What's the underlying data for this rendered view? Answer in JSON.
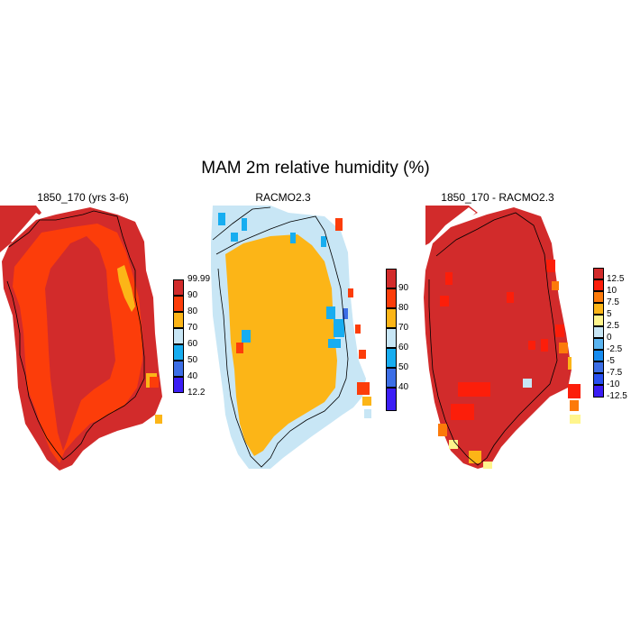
{
  "title": "MAM 2m relative humidity (%)",
  "panels": [
    {
      "title": "1850_170 (yrs 3-6)",
      "colorbar": {
        "colors": [
          "#d22b2b",
          "#fc3d0a",
          "#fcb517",
          "#c8e6f5",
          "#17adf0",
          "#3c6ee6",
          "#3c1ef5"
        ],
        "labels": [
          "99.99",
          "90",
          "80",
          "70",
          "60",
          "50",
          "40",
          "12.2"
        ]
      }
    },
    {
      "title": "RACMO2.3",
      "colorbar": {
        "colors": [
          "#d22b2b",
          "#fc3d0a",
          "#fcb517",
          "#c8e6f5",
          "#17adf0",
          "#3c6ee6",
          "#3c1ef5"
        ],
        "labels": [
          "90",
          "80",
          "70",
          "60",
          "50",
          "40"
        ]
      }
    },
    {
      "title": "1850_170 - RACMO2.3",
      "colorbar": {
        "colors": [
          "#d22b2b",
          "#fc1e0a",
          "#fc7a0a",
          "#fcb517",
          "#fff58c",
          "#c8e6f5",
          "#5ab4f0",
          "#178cf0",
          "#3c6ee6",
          "#2850f0",
          "#3c1ef5"
        ],
        "labels": [
          "12.5",
          "10",
          "7.5",
          "5",
          "2.5",
          "0",
          "-2.5",
          "-5",
          "-7.5",
          "-10",
          "-12.5"
        ]
      }
    }
  ]
}
